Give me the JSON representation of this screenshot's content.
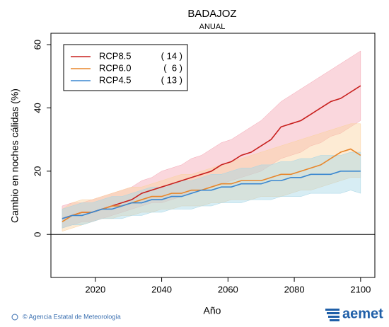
{
  "chart_data": {
    "type": "line",
    "title": "BADAJOZ",
    "subtitle": "ANUAL",
    "ylabel": "Cambio en noches cálidas (%)",
    "xlabel": "Año",
    "x": [
      2010,
      2013,
      2016,
      2019,
      2022,
      2025,
      2028,
      2031,
      2034,
      2037,
      2040,
      2043,
      2046,
      2049,
      2052,
      2055,
      2058,
      2061,
      2064,
      2067,
      2070,
      2073,
      2076,
      2079,
      2082,
      2085,
      2088,
      2091,
      2094,
      2097,
      2100
    ],
    "series": [
      {
        "name": "RCP8.5",
        "count_label": "( 14 )",
        "color": "#c8201e",
        "band_color": "#f4a6b4",
        "values": [
          5,
          6,
          7,
          7,
          8,
          9,
          10,
          11,
          13,
          14,
          15,
          16,
          17,
          18,
          19,
          20,
          22,
          23,
          25,
          26,
          28,
          30,
          34,
          35,
          36,
          38,
          40,
          42,
          43,
          45,
          47
        ],
        "lower": [
          2,
          3,
          4,
          4,
          5,
          6,
          7,
          8,
          9,
          10,
          10,
          11,
          12,
          13,
          14,
          15,
          16,
          17,
          18,
          19,
          20,
          22,
          24,
          25,
          26,
          28,
          29,
          31,
          32,
          34,
          36
        ],
        "upper": [
          9,
          10,
          10,
          11,
          12,
          13,
          14,
          15,
          17,
          18,
          20,
          21,
          22,
          24,
          25,
          27,
          29,
          30,
          32,
          34,
          36,
          39,
          42,
          44,
          46,
          48,
          50,
          52,
          54,
          56,
          58
        ]
      },
      {
        "name": "RCP6.0",
        "count_label": "(  6 )",
        "color": "#e8862a",
        "band_color": "#fbd2a0",
        "values": [
          4,
          6,
          7,
          7,
          8,
          9,
          9,
          10,
          11,
          12,
          12,
          13,
          13,
          14,
          14,
          15,
          16,
          16,
          17,
          17,
          17,
          18,
          19,
          19,
          20,
          21,
          22,
          24,
          26,
          27,
          25
        ],
        "lower": [
          1,
          2,
          3,
          4,
          5,
          5,
          6,
          6,
          7,
          7,
          8,
          8,
          9,
          9,
          9,
          10,
          10,
          11,
          11,
          11,
          12,
          12,
          12,
          13,
          14,
          14,
          15,
          16,
          17,
          18,
          18
        ],
        "upper": [
          8,
          10,
          11,
          11,
          12,
          13,
          14,
          15,
          15,
          16,
          17,
          18,
          19,
          19,
          20,
          21,
          22,
          23,
          24,
          25,
          26,
          27,
          28,
          29,
          30,
          31,
          32,
          33,
          34,
          35,
          35
        ]
      },
      {
        "name": "RCP4.5",
        "count_label": "( 13 )",
        "color": "#3a87d0",
        "band_color": "#a7d6e6",
        "values": [
          5,
          6,
          6,
          7,
          8,
          8,
          9,
          10,
          10,
          11,
          11,
          12,
          12,
          13,
          14,
          14,
          15,
          15,
          16,
          16,
          16,
          17,
          17,
          18,
          18,
          19,
          19,
          19,
          20,
          20,
          20
        ],
        "lower": [
          2,
          3,
          3,
          4,
          5,
          5,
          5,
          6,
          6,
          7,
          7,
          8,
          8,
          8,
          9,
          9,
          10,
          10,
          10,
          11,
          11,
          11,
          12,
          12,
          12,
          13,
          13,
          13,
          13,
          14,
          13
        ],
        "upper": [
          8,
          9,
          10,
          10,
          11,
          12,
          12,
          13,
          14,
          15,
          15,
          16,
          17,
          17,
          18,
          19,
          19,
          20,
          21,
          21,
          22,
          22,
          23,
          23,
          24,
          24,
          25,
          25,
          25,
          26,
          26
        ]
      }
    ],
    "xlim": [
      2006.6,
      2104.3
    ],
    "xticks": [
      2020,
      2040,
      2060,
      2080,
      2100
    ],
    "ylim": [
      -13.6,
      63.6
    ],
    "yticks": [
      0,
      20,
      40,
      60
    ],
    "zero_line": true,
    "legend": "upper left",
    "footer": "© Agencia Estatal de Meteorología",
    "logo": "aemet"
  }
}
